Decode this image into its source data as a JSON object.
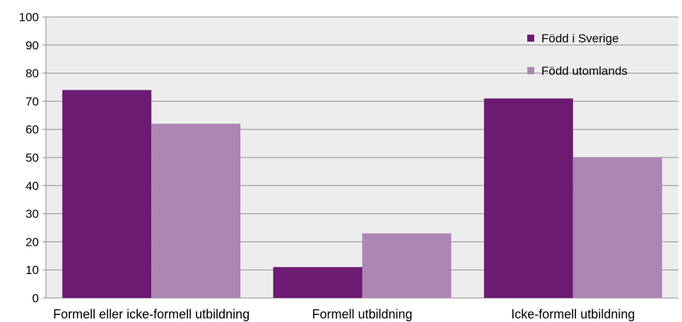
{
  "chart_data": {
    "type": "bar",
    "title": "",
    "xlabel": "",
    "ylabel": "",
    "ylim": [
      0,
      100
    ],
    "yticks": [
      0,
      10,
      20,
      30,
      40,
      50,
      60,
      70,
      80,
      90,
      100
    ],
    "grid": true,
    "legend_position": "top-right",
    "categories": [
      "Formell eller icke-formell utbildning",
      "Formell utbildning",
      "Icke-formell utbildning"
    ],
    "series": [
      {
        "name": "Född i Sverige",
        "values": [
          74,
          11,
          71
        ],
        "color": "#6d1a72"
      },
      {
        "name": "Född utomlands",
        "values": [
          62,
          23,
          50
        ],
        "color": "#ad87b4"
      }
    ]
  }
}
